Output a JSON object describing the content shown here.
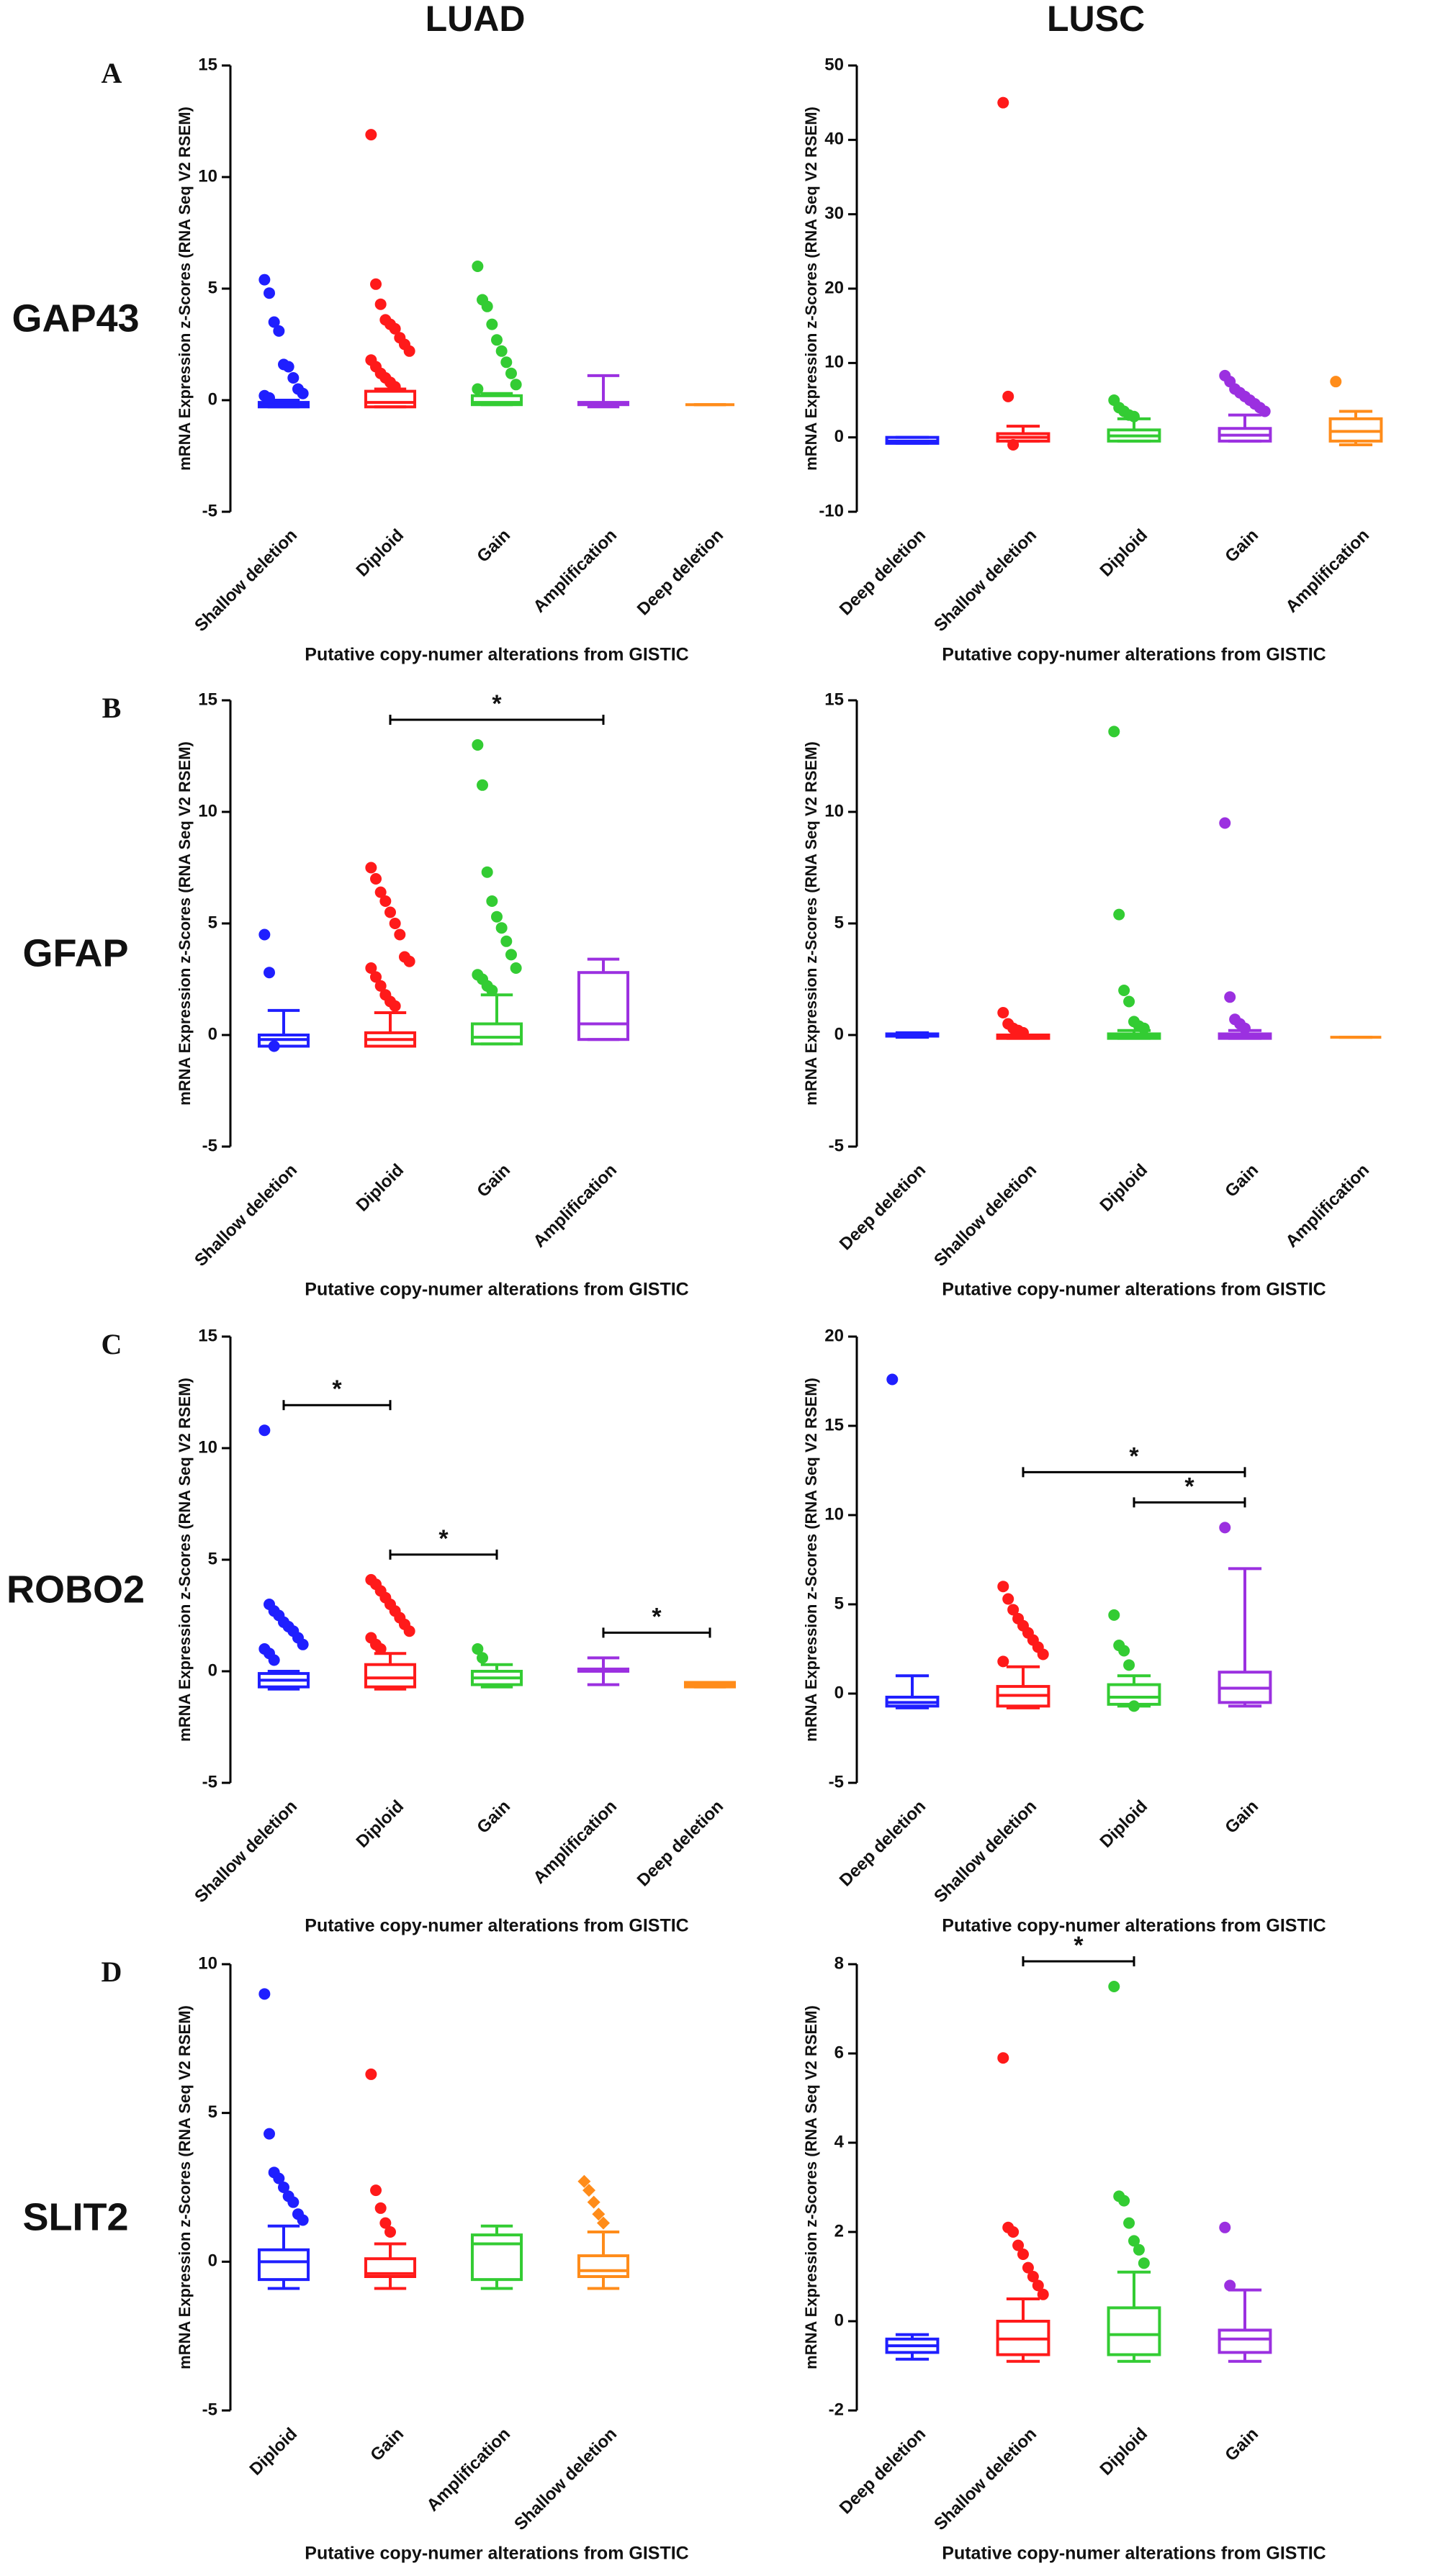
{
  "columns": [
    "LUAD",
    "LUSC"
  ],
  "rows": [
    {
      "letter": "A",
      "gene": "GAP43"
    },
    {
      "letter": "B",
      "gene": "GFAP"
    },
    {
      "letter": "C",
      "gene": "ROBO2"
    },
    {
      "letter": "D",
      "gene": "SLIT2"
    }
  ],
  "chart_data": [
    {
      "type": "box",
      "ylabel": "mRNA Expression z-Scores (RNA Seq V2 RSEM)",
      "xlabel": "Putative copy-numer alterations from GISTIC",
      "categories": [
        "Shallow deletion",
        "Diploid",
        "Gain",
        "Amplification",
        "Deep deletion"
      ],
      "ylim": [
        -5,
        15
      ],
      "yticks": [
        -5,
        0,
        5,
        10,
        15
      ],
      "boxes": [
        {
          "color": "#1f1fff",
          "whislo": -0.3,
          "q1": -0.3,
          "med": -0.2,
          "q3": -0.1,
          "whishi": 0,
          "fliers": [
            5.4,
            4.8,
            3.5,
            3.1,
            1.6,
            1.5,
            1.0,
            0.5,
            0.3,
            0.2,
            0.1
          ]
        },
        {
          "color": "#ff1a1a",
          "whislo": -0.3,
          "q1": -0.3,
          "med": -0.1,
          "q3": 0.4,
          "whishi": 0.5,
          "fliers": [
            11.9,
            5.2,
            4.3,
            3.6,
            3.4,
            3.2,
            2.8,
            2.5,
            2.2,
            1.8,
            1.5,
            1.2,
            1.0,
            0.8,
            0.6
          ]
        },
        {
          "color": "#33cc33",
          "whislo": -0.2,
          "q1": -0.2,
          "med": -0.1,
          "q3": 0.2,
          "whishi": 0.3,
          "fliers": [
            6.0,
            4.5,
            4.2,
            3.4,
            2.7,
            2.2,
            1.7,
            1.2,
            0.7,
            0.5
          ]
        },
        {
          "color": "#9b30e0",
          "whislo": -0.3,
          "q1": -0.2,
          "med": -0.15,
          "q3": -0.1,
          "whishi": 1.1,
          "fliers": []
        },
        {
          "color": "#ff8c1a",
          "whislo": -0.2,
          "q1": -0.2,
          "med": -0.2,
          "q3": -0.2,
          "whishi": -0.2,
          "fliers": []
        }
      ],
      "brackets": []
    },
    {
      "type": "box",
      "ylabel": "mRNA Expression z-Scores (RNA Seq V2 RSEM)",
      "xlabel": "Putative copy-numer alterations from GISTIC",
      "categories": [
        "Deep deletion",
        "Shallow deletion",
        "Diploid",
        "Gain",
        "Amplification"
      ],
      "ylim": [
        -10,
        50
      ],
      "yticks": [
        -10,
        0,
        10,
        20,
        30,
        40,
        50
      ],
      "boxes": [
        {
          "color": "#1f1fff",
          "whislo": -0.8,
          "q1": -0.8,
          "med": -0.5,
          "q3": 0,
          "whishi": 0,
          "fliers": []
        },
        {
          "color": "#ff1a1a",
          "whislo": -0.5,
          "q1": -0.5,
          "med": 0,
          "q3": 0.5,
          "whishi": 1.5,
          "fliers": [
            45,
            5.5,
            -1
          ]
        },
        {
          "color": "#33cc33",
          "whislo": -0.5,
          "q1": -0.5,
          "med": 0.2,
          "q3": 1,
          "whishi": 2.5,
          "fliers": [
            5,
            4,
            3.5,
            3,
            2.8
          ]
        },
        {
          "color": "#9b30e0",
          "whislo": -0.5,
          "q1": -0.5,
          "med": 0.3,
          "q3": 1.2,
          "whishi": 3,
          "fliers": [
            8.3,
            7.5,
            6.5,
            6,
            5.5,
            5,
            4.5,
            4,
            3.5
          ]
        },
        {
          "color": "#ff8c1a",
          "whislo": -1,
          "q1": -0.5,
          "med": 0.8,
          "q3": 2.5,
          "whishi": 3.5,
          "fliers": [
            7.5
          ]
        }
      ],
      "brackets": []
    },
    {
      "type": "box",
      "ylabel": "mRNA Expression z-Scores (RNA Seq V2 RSEM)",
      "xlabel": "Putative copy-numer alterations from GISTIC",
      "categories": [
        "Shallow deletion",
        "Diploid",
        "Gain",
        "Amplification"
      ],
      "ylim": [
        -5,
        15
      ],
      "yticks": [
        -5,
        0,
        5,
        10,
        15
      ],
      "boxes": [
        {
          "color": "#1f1fff",
          "whislo": -0.5,
          "q1": -0.5,
          "med": -0.2,
          "q3": 0,
          "whishi": 1.1,
          "fliers": [
            4.5,
            2.8,
            -0.5
          ]
        },
        {
          "color": "#ff1a1a",
          "whislo": -0.5,
          "q1": -0.5,
          "med": -0.2,
          "q3": 0.1,
          "whishi": 1.0,
          "fliers": [
            7.5,
            7.0,
            6.4,
            6.0,
            5.5,
            5.0,
            4.5,
            3.5,
            3.3,
            3.0,
            2.6,
            2.2,
            1.8,
            1.5,
            1.3
          ]
        },
        {
          "color": "#33cc33",
          "whislo": -0.4,
          "q1": -0.4,
          "med": -0.1,
          "q3": 0.5,
          "whishi": 1.8,
          "fliers": [
            13,
            11.2,
            7.3,
            6,
            5.3,
            4.8,
            4.2,
            3.6,
            3.0,
            2.7,
            2.5,
            2.2,
            2.0
          ]
        },
        {
          "color": "#9b30e0",
          "whislo": -0.2,
          "q1": -0.2,
          "med": 0.5,
          "q3": 2.8,
          "whishi": 3.4,
          "fliers": []
        }
      ],
      "brackets": [
        {
          "label": "*",
          "from": 1,
          "to": 3
        }
      ]
    },
    {
      "type": "box",
      "ylabel": "mRNA Expression z-Scores (RNA Seq V2 RSEM)",
      "xlabel": "Putative copy-numer alterations from GISTIC",
      "categories": [
        "Deep deletion",
        "Shallow deletion",
        "Diploid",
        "Gain",
        "Amplification"
      ],
      "ylim": [
        -5,
        15
      ],
      "yticks": [
        -5,
        0,
        5,
        10,
        15
      ],
      "boxes": [
        {
          "color": "#1f1fff",
          "whislo": -0.1,
          "q1": -0.05,
          "med": 0,
          "q3": 0.05,
          "whishi": 0.1,
          "fliers": []
        },
        {
          "color": "#ff1a1a",
          "whislo": -0.15,
          "q1": -0.15,
          "med": -0.1,
          "q3": 0,
          "whishi": 0,
          "fliers": [
            1.0,
            0.5,
            0.3,
            0.2,
            0.1
          ]
        },
        {
          "color": "#33cc33",
          "whislo": -0.15,
          "q1": -0.15,
          "med": -0.05,
          "q3": 0.05,
          "whishi": 0.2,
          "fliers": [
            13.6,
            5.4,
            2.0,
            1.5,
            0.6,
            0.4,
            0.3
          ]
        },
        {
          "color": "#9b30e0",
          "whislo": -0.15,
          "q1": -0.15,
          "med": -0.05,
          "q3": 0.05,
          "whishi": 0.2,
          "fliers": [
            9.5,
            1.7,
            0.7,
            0.5,
            0.3
          ]
        },
        {
          "color": "#ff8c1a",
          "whislo": -0.1,
          "q1": -0.1,
          "med": -0.1,
          "q3": -0.1,
          "whishi": -0.1,
          "fliers": []
        }
      ],
      "brackets": []
    },
    {
      "type": "box",
      "ylabel": "mRNA Expression z-Scores (RNA Seq V2 RSEM)",
      "xlabel": "Putative copy-numer alterations from GISTIC",
      "categories": [
        "Shallow deletion",
        "Diploid",
        "Gain",
        "Amplification",
        "Deep deletion"
      ],
      "ylim": [
        -5,
        15
      ],
      "yticks": [
        -5,
        0,
        5,
        10,
        15
      ],
      "boxes": [
        {
          "color": "#1f1fff",
          "whislo": -0.8,
          "q1": -0.7,
          "med": -0.4,
          "q3": -0.1,
          "whishi": 0,
          "fliers": [
            10.8,
            3.0,
            2.7,
            2.5,
            2.2,
            2.0,
            1.8,
            1.5,
            1.2,
            1.0,
            0.8,
            0.5
          ]
        },
        {
          "color": "#ff1a1a",
          "whislo": -0.8,
          "q1": -0.7,
          "med": -0.3,
          "q3": 0.3,
          "whishi": 0.8,
          "fliers": [
            4.1,
            3.9,
            3.6,
            3.3,
            3.0,
            2.7,
            2.4,
            2.1,
            1.8,
            1.5,
            1.2,
            1.0
          ]
        },
        {
          "color": "#33cc33",
          "whislo": -0.7,
          "q1": -0.6,
          "med": -0.3,
          "q3": 0,
          "whishi": 0.3,
          "fliers": [
            1.0,
            0.6
          ]
        },
        {
          "color": "#9b30e0",
          "whislo": -0.6,
          "q1": 0,
          "med": 0.05,
          "q3": 0.1,
          "whishi": 0.6,
          "fliers": []
        },
        {
          "color": "#ff8c1a",
          "whislo": -0.7,
          "q1": -0.7,
          "med": -0.6,
          "q3": -0.5,
          "whishi": -0.5,
          "fliers": []
        }
      ],
      "brackets": [
        {
          "label": "*",
          "from": 0,
          "to": 1
        },
        {
          "label": "*",
          "from": 1,
          "to": 2
        },
        {
          "label": "*",
          "from": 3,
          "to": 4
        }
      ]
    },
    {
      "type": "box",
      "ylabel": "mRNA Expression z-Scores (RNA Seq V2 RSEM)",
      "xlabel": "Putative copy-numer alterations from GISTIC",
      "categories": [
        "Deep deletion",
        "Shallow deletion",
        "Diploid",
        "Gain"
      ],
      "ylim": [
        -5,
        20
      ],
      "yticks": [
        -5,
        0,
        5,
        10,
        15,
        20
      ],
      "boxes": [
        {
          "color": "#1f1fff",
          "whislo": -0.8,
          "q1": -0.7,
          "med": -0.5,
          "q3": -0.2,
          "whishi": 1.0,
          "fliers": [
            17.6
          ]
        },
        {
          "color": "#ff1a1a",
          "whislo": -0.8,
          "q1": -0.7,
          "med": -0.1,
          "q3": 0.4,
          "whishi": 1.5,
          "fliers": [
            6.0,
            5.3,
            4.7,
            4.2,
            3.8,
            3.4,
            3.0,
            2.6,
            2.2,
            1.8
          ]
        },
        {
          "color": "#33cc33",
          "whislo": -0.7,
          "q1": -0.6,
          "med": -0.2,
          "q3": 0.5,
          "whishi": 1.0,
          "fliers": [
            4.4,
            2.7,
            2.4,
            1.6,
            -0.7
          ]
        },
        {
          "color": "#9b30e0",
          "whislo": -0.7,
          "q1": -0.5,
          "med": 0.3,
          "q3": 1.2,
          "whishi": 7.0,
          "fliers": [
            9.3
          ]
        }
      ],
      "brackets": [
        {
          "label": "*",
          "from": 2,
          "to": 3
        },
        {
          "label": "*",
          "from": 1,
          "to": 3
        }
      ]
    },
    {
      "type": "box",
      "ylabel": "mRNA Expression z-Scores (RNA Seq V2 RSEM)",
      "xlabel": "Putative copy-numer alterations from GISTIC",
      "categories": [
        "Diploid",
        "Gain",
        "Amplification",
        "Shallow deletion"
      ],
      "ylim": [
        -5,
        10
      ],
      "yticks": [
        -5,
        0,
        5,
        10
      ],
      "boxes": [
        {
          "color": "#1f1fff",
          "whislo": -0.9,
          "q1": -0.6,
          "med": 0,
          "q3": 0.4,
          "whishi": 1.2,
          "fliers": [
            9.0,
            4.3,
            3.0,
            2.8,
            2.5,
            2.2,
            2.0,
            1.6,
            1.4
          ]
        },
        {
          "color": "#ff1a1a",
          "whislo": -0.9,
          "q1": -0.5,
          "med": -0.4,
          "q3": 0.1,
          "whishi": 0.6,
          "fliers": [
            6.3,
            2.4,
            1.8,
            1.3,
            1.0
          ]
        },
        {
          "color": "#33cc33",
          "whislo": -0.9,
          "q1": -0.6,
          "med": 0.6,
          "q3": 0.9,
          "whishi": 1.2,
          "fliers": []
        },
        {
          "color": "#ff8c1a",
          "marker": "diamond",
          "whislo": -0.9,
          "q1": -0.5,
          "med": -0.3,
          "q3": 0.2,
          "whishi": 1.0,
          "fliers": [
            2.7,
            2.4,
            2.0,
            1.6,
            1.3
          ]
        }
      ],
      "brackets": []
    },
    {
      "type": "box",
      "ylabel": "mRNA Expression z-Scores (RNA Seq V2 RSEM)",
      "xlabel": "Putative copy-numer alterations from GISTIC",
      "categories": [
        "Deep deletion",
        "Shallow deletion",
        "Diploid",
        "Gain"
      ],
      "ylim": [
        -2,
        8
      ],
      "yticks": [
        -2,
        0,
        2,
        4,
        6,
        8
      ],
      "boxes": [
        {
          "color": "#1f1fff",
          "whislo": -0.85,
          "q1": -0.7,
          "med": -0.55,
          "q3": -0.4,
          "whishi": -0.3,
          "fliers": []
        },
        {
          "color": "#ff1a1a",
          "whislo": -0.9,
          "q1": -0.75,
          "med": -0.4,
          "q3": 0,
          "whishi": 0.5,
          "fliers": [
            5.9,
            2.1,
            2.0,
            1.7,
            1.5,
            1.2,
            1.0,
            0.8,
            0.6
          ]
        },
        {
          "color": "#33cc33",
          "whislo": -0.9,
          "q1": -0.75,
          "med": -0.3,
          "q3": 0.3,
          "whishi": 1.1,
          "fliers": [
            7.5,
            2.8,
            2.7,
            2.2,
            1.8,
            1.6,
            1.3
          ]
        },
        {
          "color": "#9b30e0",
          "whislo": -0.9,
          "q1": -0.7,
          "med": -0.4,
          "q3": -0.2,
          "whishi": 0.7,
          "fliers": [
            2.1,
            0.8
          ]
        }
      ],
      "brackets": [
        {
          "label": "*",
          "from": 1,
          "to": 2
        }
      ]
    }
  ]
}
